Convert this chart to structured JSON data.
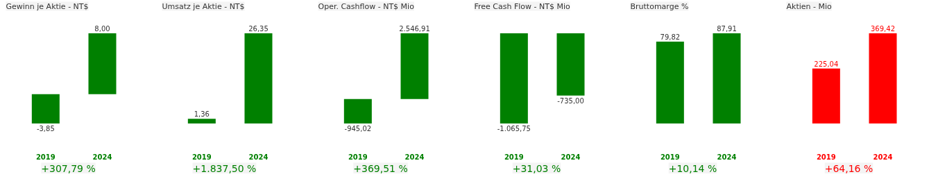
{
  "chart_data": [
    {
      "type": "bar",
      "title": "Gewinn je Aktie - NT$",
      "categories": [
        "2019",
        "2024"
      ],
      "series": [
        {
          "color": "#008000",
          "values": [
            -3.85,
            8.0
          ],
          "value_labels": [
            "-3,85",
            "8,00"
          ]
        }
      ],
      "annotations": [
        "+307,79 %"
      ]
    },
    {
      "type": "bar",
      "title": "Umsatz je Aktie - NT$",
      "categories": [
        "2019",
        "2024"
      ],
      "series": [
        {
          "color": "#008000",
          "values": [
            1.36,
            26.35
          ],
          "value_labels": [
            "1,36",
            "26,35"
          ]
        }
      ],
      "annotations": [
        "+1.837,50 %"
      ]
    },
    {
      "type": "bar",
      "title": "Oper. Cashflow - NT$ Mio",
      "categories": [
        "2019",
        "2024"
      ],
      "series": [
        {
          "color": "#008000",
          "values": [
            -945.02,
            2546.91
          ],
          "value_labels": [
            "-945,02",
            "2.546,91"
          ]
        }
      ],
      "annotations": [
        "+369,51 %"
      ]
    },
    {
      "type": "bar",
      "title": "Free Cash Flow - NT$ Mio",
      "categories": [
        "2019",
        "2024"
      ],
      "series": [
        {
          "color": "#008000",
          "values": [
            -1065.75,
            -735.0
          ],
          "value_labels": [
            "-1.065,75",
            "-735,00"
          ]
        }
      ],
      "annotations": [
        "+31,03 %"
      ]
    },
    {
      "type": "bar",
      "title": "Bruttomarge %",
      "categories": [
        "2019",
        "2024"
      ],
      "series": [
        {
          "color": "#008000",
          "values": [
            79.82,
            87.91
          ],
          "value_labels": [
            "79,82",
            "87,91"
          ]
        }
      ],
      "annotations": [
        "+10,14 %"
      ]
    },
    {
      "type": "bar",
      "title": "Aktien - Mio",
      "categories": [
        "2019",
        "2024"
      ],
      "series": [
        {
          "color": "#ff0000",
          "values": [
            225.04,
            369.42
          ],
          "value_labels": [
            "225,04",
            "369,42"
          ]
        }
      ],
      "annotations": [
        "+64,16 %"
      ]
    }
  ]
}
